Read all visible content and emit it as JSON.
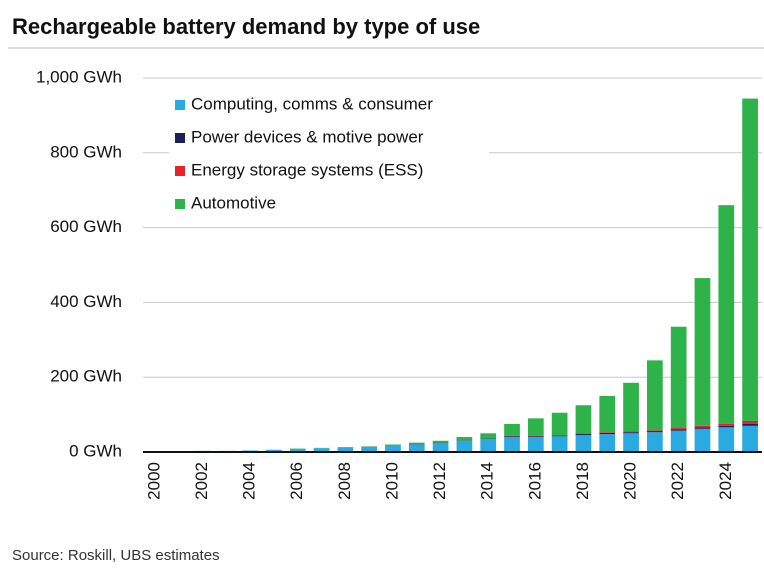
{
  "chart_data": {
    "type": "stacked_bar",
    "title": "Rechargeable battery demand by type of use",
    "source": "Source: Roskill, UBS estimates",
    "categories": [
      "2000",
      null,
      "2002",
      null,
      "2004",
      null,
      "2006",
      null,
      "2008",
      null,
      "2010",
      null,
      "2012",
      null,
      "2014",
      null,
      "2016",
      null,
      "2018",
      null,
      "2020",
      null,
      "2022",
      null,
      "2024",
      null
    ],
    "series": [
      {
        "name": "Computing, comms & consumer",
        "color": "#29abe2",
        "values": [
          2,
          2,
          3,
          3,
          4,
          6,
          8,
          10,
          12,
          13,
          17,
          20,
          24,
          30,
          35,
          40,
          40,
          42,
          45,
          48,
          50,
          53,
          57,
          62,
          66,
          70
        ]
      },
      {
        "name": "Power devices & motive power",
        "color": "#1f1f5c",
        "values": [
          0,
          0,
          0,
          0,
          0,
          0,
          0,
          0,
          0,
          1,
          1,
          1,
          1,
          1,
          1,
          2,
          2,
          2,
          3,
          3,
          3,
          3,
          4,
          4,
          4,
          5
        ]
      },
      {
        "name": "Energy storage systems (ESS)",
        "color": "#e8202a",
        "values": [
          0,
          0,
          0,
          0,
          0,
          0,
          0,
          0,
          0,
          0,
          0,
          0,
          0,
          0,
          0,
          1,
          1,
          1,
          2,
          2,
          2,
          2,
          3,
          4,
          5,
          8
        ]
      },
      {
        "name": "Automotive",
        "color": "#2db34a",
        "values": [
          0,
          0,
          0,
          0,
          0,
          0,
          1,
          1,
          1,
          1,
          2,
          4,
          5,
          9,
          14,
          32,
          47,
          60,
          75,
          97,
          130,
          187,
          271,
          395,
          585,
          862
        ]
      }
    ],
    "ylim": [
      0,
      1000
    ],
    "yticks": [
      {
        "value": 0,
        "label": "0 GWh"
      },
      {
        "value": 200,
        "label": "200 GWh"
      },
      {
        "value": 400,
        "label": "400 GWh"
      },
      {
        "value": 600,
        "label": "600 GWh"
      },
      {
        "value": 800,
        "label": "800 GWh"
      },
      {
        "value": 1000,
        "label": "1,000 GWh"
      }
    ],
    "grid": true,
    "legend": "top-left"
  }
}
